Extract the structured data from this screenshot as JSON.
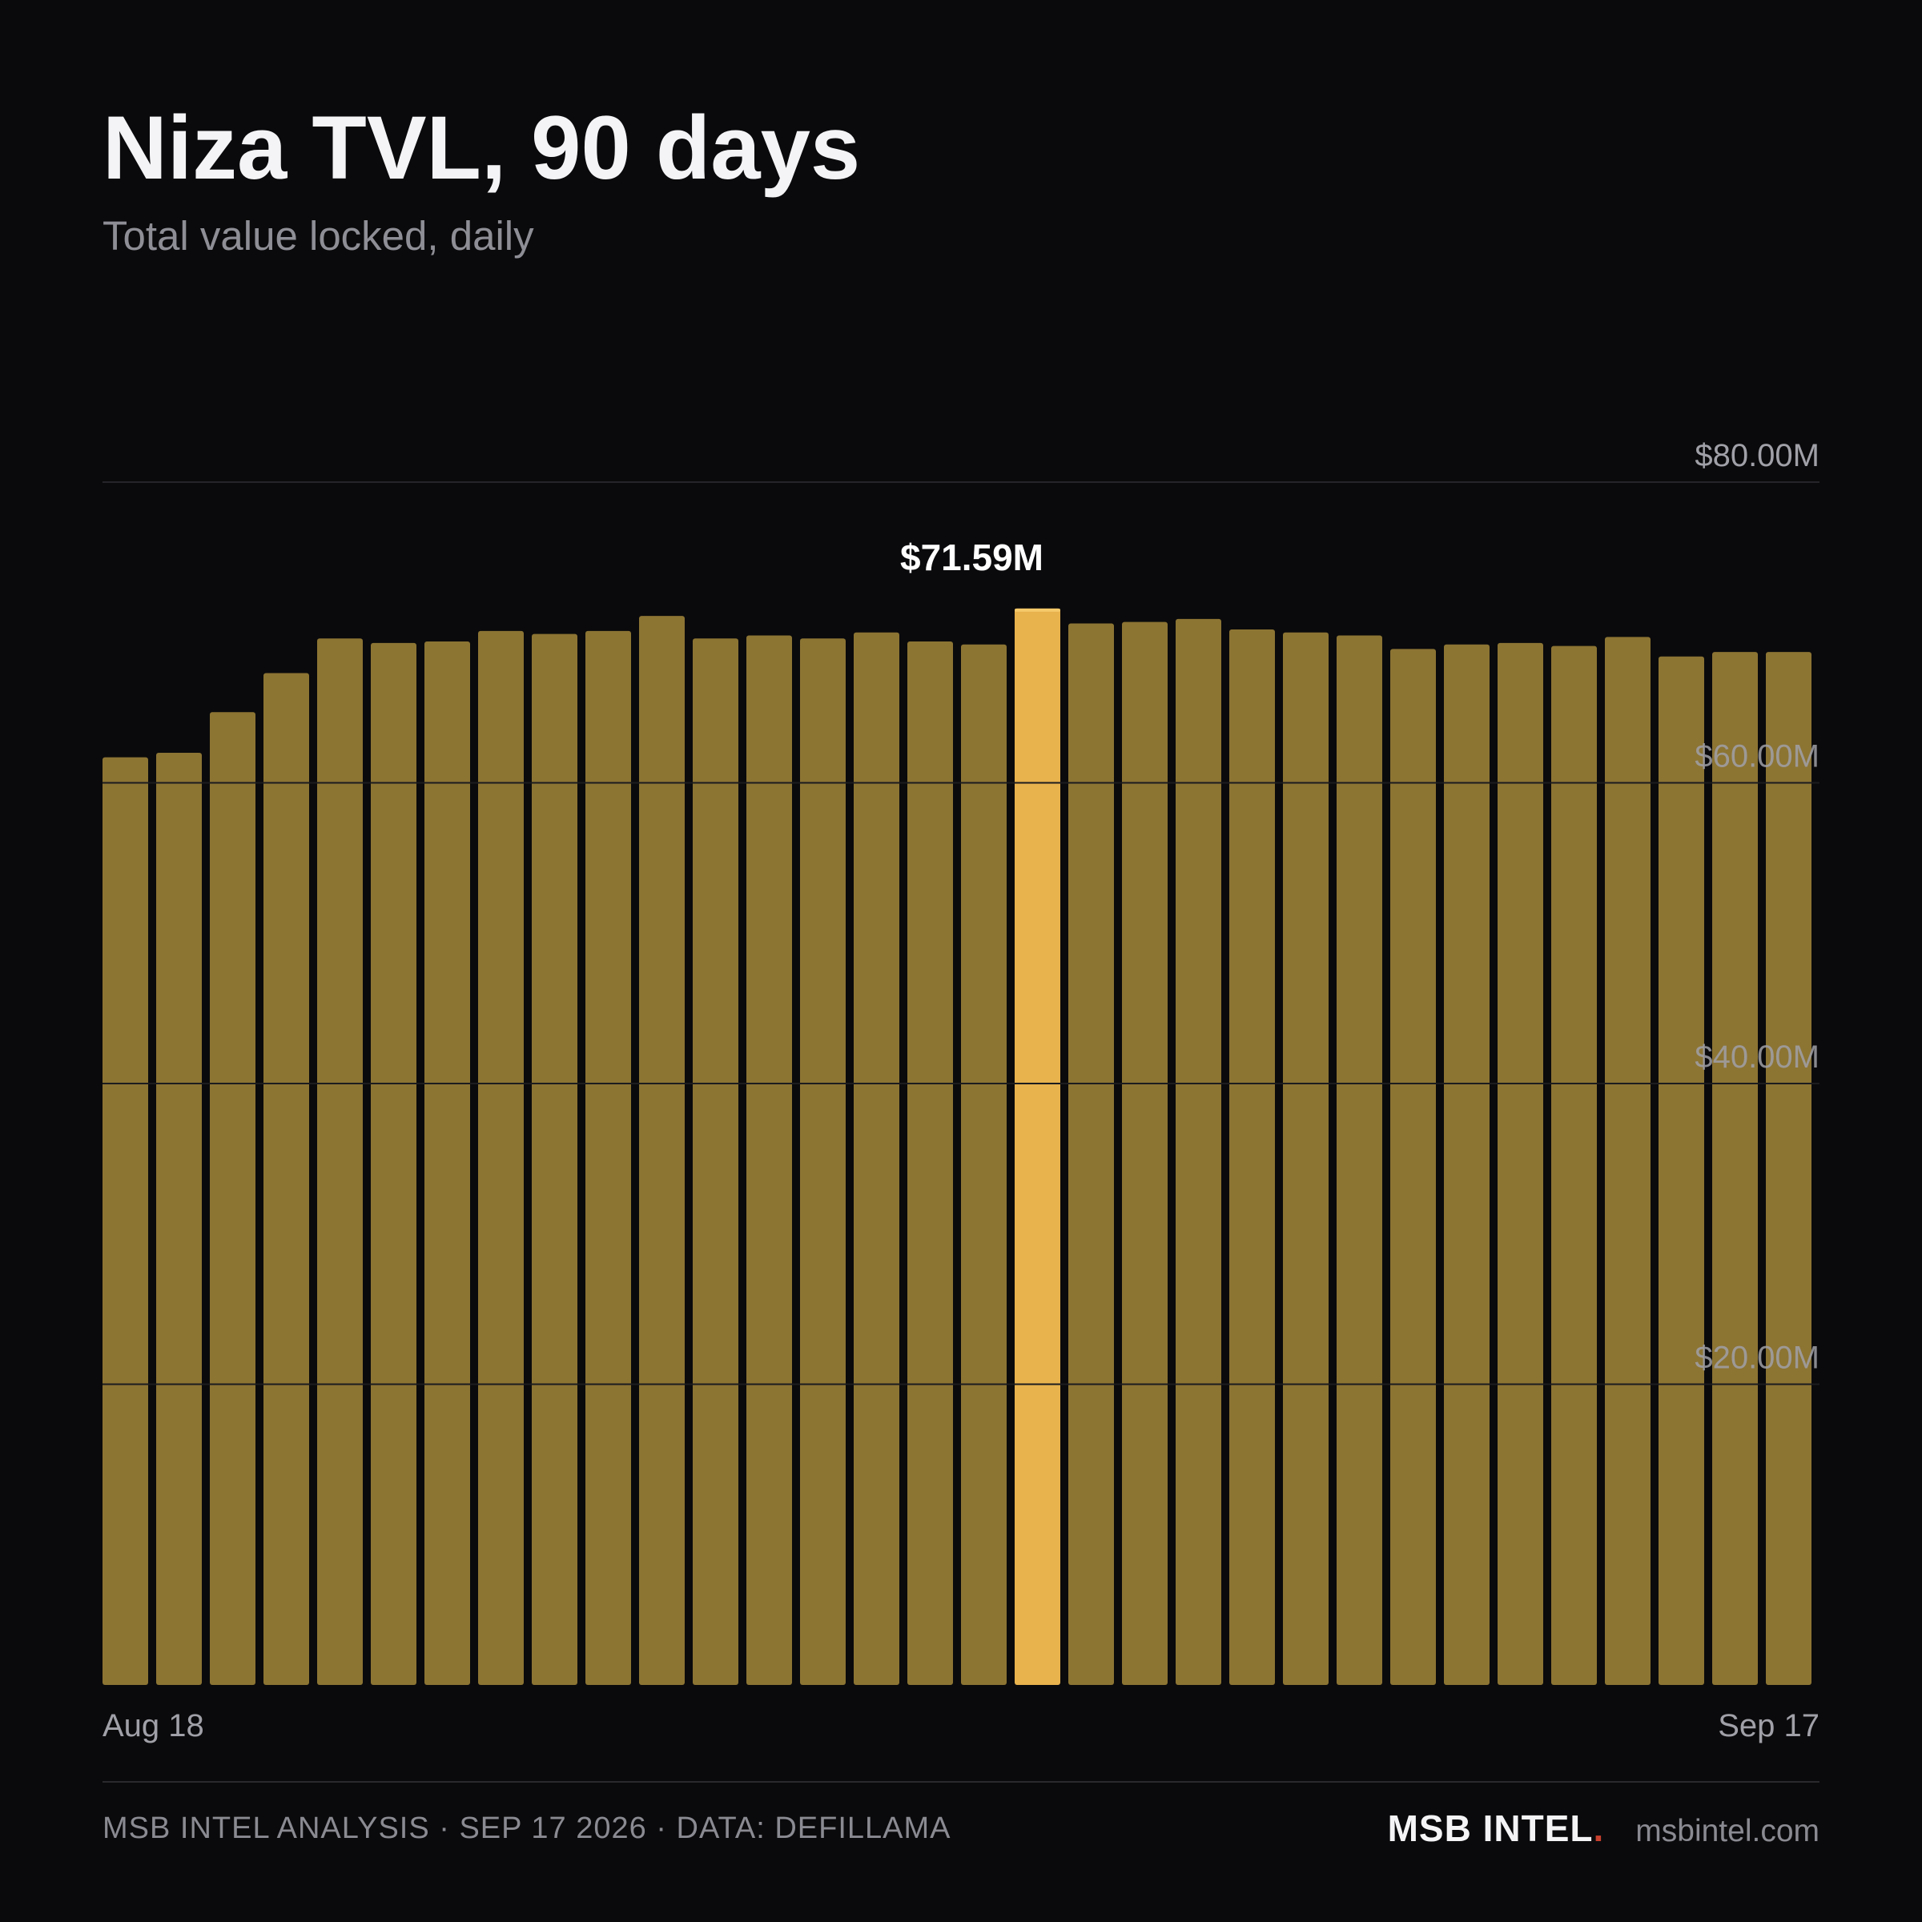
{
  "header": {
    "title": "Niza TVL, 90 days",
    "subtitle": "Total value locked, daily"
  },
  "chart_data": {
    "type": "bar",
    "title": "Niza TVL, 90 days",
    "subtitle": "Total value locked, daily",
    "xlabel": "",
    "ylabel": "",
    "ylim": [
      0,
      80
    ],
    "y_unit": "$M",
    "y_ticks": [
      20,
      40,
      60,
      80
    ],
    "y_tick_labels": [
      "$20.00M",
      "$40.00M",
      "$60.00M",
      "$80.00M"
    ],
    "x_tick_labels": [
      "Aug 18",
      "Sep 17"
    ],
    "grid": true,
    "values": [
      61.7,
      62.0,
      64.7,
      67.3,
      69.6,
      69.3,
      69.4,
      70.1,
      69.9,
      70.1,
      71.1,
      69.6,
      69.8,
      69.6,
      70.0,
      69.4,
      69.2,
      71.59,
      70.6,
      70.7,
      70.9,
      70.2,
      70.0,
      69.8,
      68.9,
      69.2,
      69.3,
      69.1,
      69.7,
      68.4,
      68.7,
      68.7
    ],
    "highlight_index": 17,
    "highlight_label": "$71.59M",
    "colors": {
      "bar": "#8c7433",
      "highlight": "#e8b24d",
      "highlight_cap": "#f6c96a",
      "grid": "#2e2e32",
      "tick_label": "#a0a0a8",
      "annotation": "#ffffff"
    }
  },
  "footer": {
    "source": "MSB INTEL ANALYSIS · SEP 17 2026 · DATA: DEFILLAMA",
    "brand": "MSB INTEL",
    "brand_dot": ".",
    "site": "msbintel.com"
  }
}
